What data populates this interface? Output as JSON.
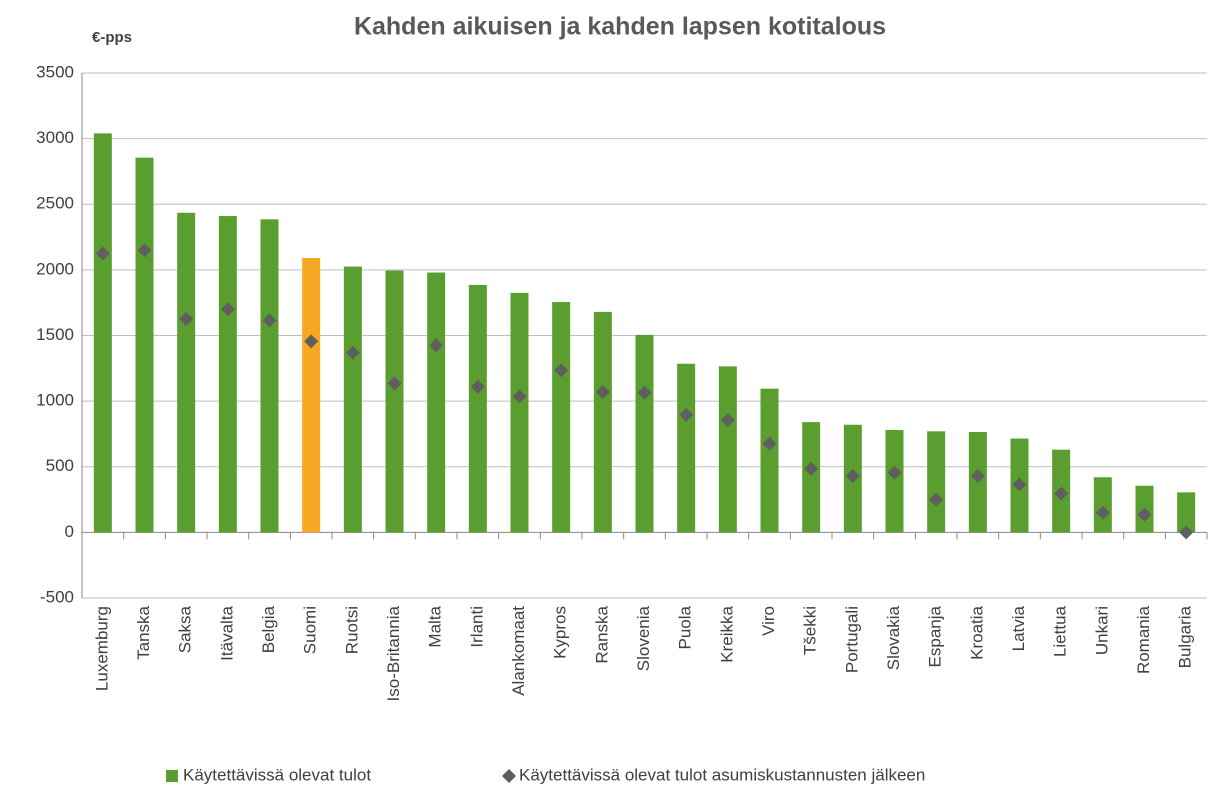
{
  "chart_data": {
    "type": "bar",
    "title": "Kahden aikuisen ja kahden lapsen kotitalous",
    "y_label": "€-pps",
    "categories": [
      "Luxemburg",
      "Tanska",
      "Saksa",
      "Itävalta",
      "Belgia",
      "Suomi",
      "Ruotsi",
      "Iso-Britannia",
      "Malta",
      "Irlanti",
      "Alankomaat",
      "Kypros",
      "Ranska",
      "Slovenia",
      "Puola",
      "Kreikka",
      "Viro",
      "Tšekki",
      "Portugali",
      "Slovakia",
      "Espanja",
      "Kroatia",
      "Latvia",
      "Liettua",
      "Unkari",
      "Romania",
      "Bulgaria"
    ],
    "series": [
      {
        "name": "Käytettävissä olevat tulot",
        "color": "#5a9e2f",
        "marker": "bar",
        "highlight_category": "Suomi",
        "highlight_color": "#f7a823",
        "values": [
          3040,
          2855,
          2435,
          2410,
          2385,
          2090,
          2025,
          1995,
          1980,
          1885,
          1825,
          1755,
          1680,
          1505,
          1285,
          1265,
          1095,
          840,
          820,
          780,
          770,
          765,
          715,
          630,
          420,
          355,
          305
        ]
      },
      {
        "name": "Käytettävissä olevat tulot asumiskustannusten jälkeen",
        "color": "#5f5f5f",
        "marker": "diamond",
        "values": [
          2125,
          2150,
          1625,
          1700,
          1615,
          1455,
          1370,
          1135,
          1425,
          1110,
          1035,
          1235,
          1070,
          1065,
          895,
          855,
          675,
          485,
          430,
          455,
          250,
          430,
          365,
          295,
          150,
          135,
          0
        ]
      }
    ],
    "ylim": [
      -500,
      3500
    ],
    "yticks": [
      -500,
      0,
      500,
      1000,
      1500,
      2000,
      2500,
      3000,
      3500
    ],
    "grid": true,
    "legend": "bottom"
  }
}
